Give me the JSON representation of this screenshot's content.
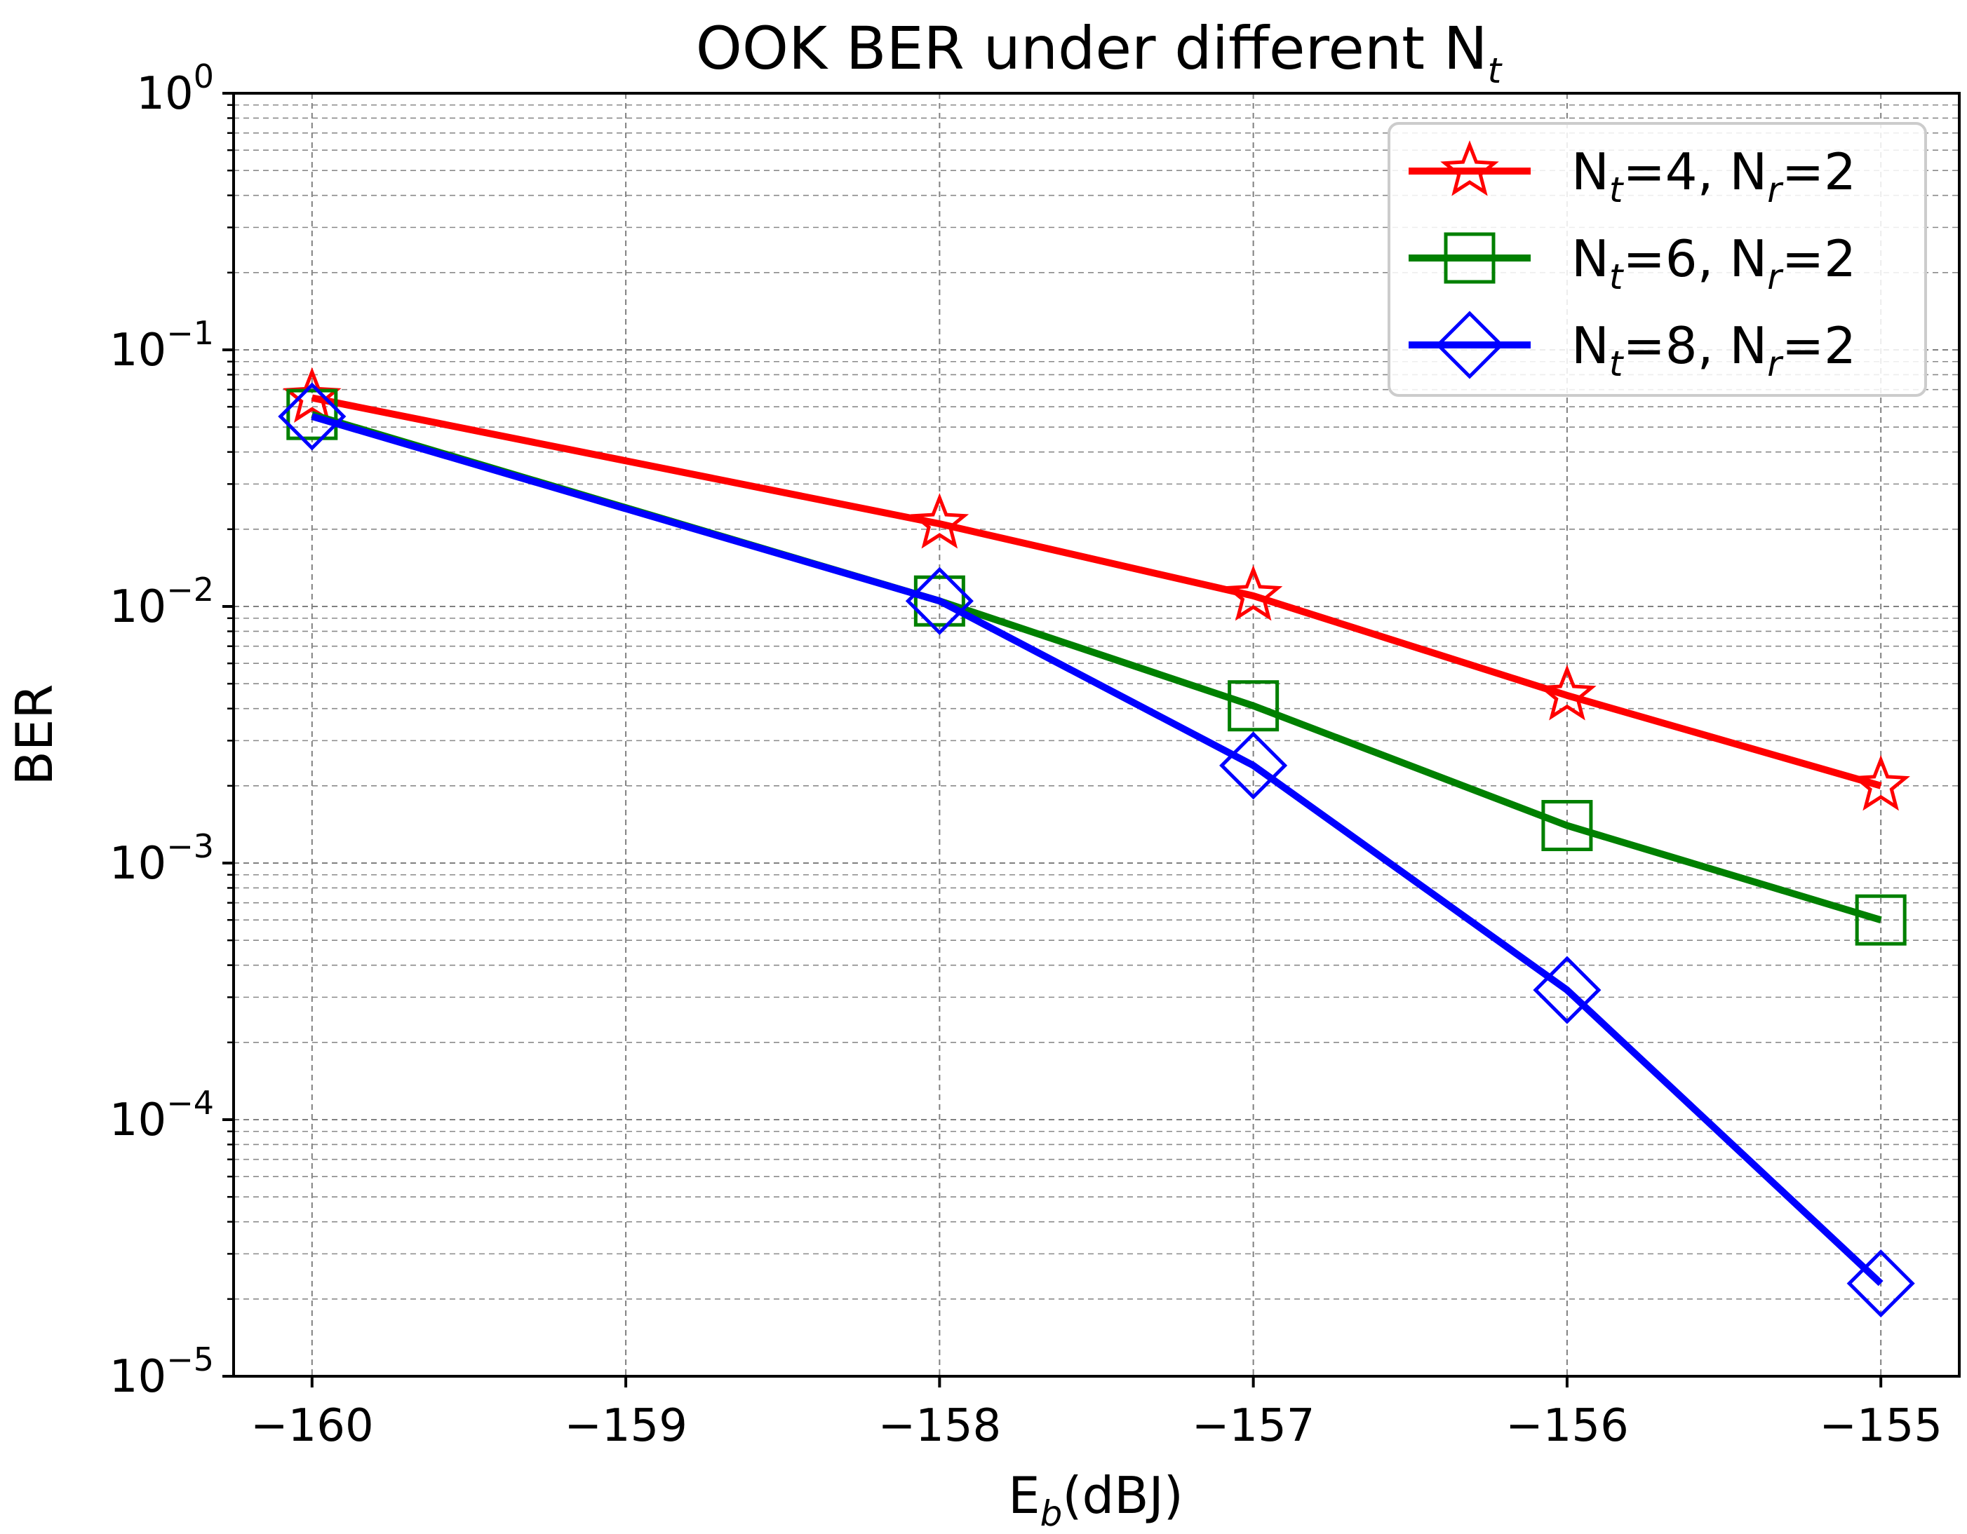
{
  "chart_data": {
    "type": "line",
    "title": "OOK BER under different N",
    "title_subscript": "t",
    "xlabel": "E",
    "xlabel_subscript": "b",
    "xlabel_suffix": "(dBJ)",
    "ylabel": "BER",
    "yscale": "log",
    "xlim": [
      -160.25,
      -154.75
    ],
    "ylim": [
      1e-05,
      1
    ],
    "grid": true,
    "legend_position": "upper-right",
    "x_ticks": [
      {
        "value": -160,
        "label": "−160"
      },
      {
        "value": -159,
        "label": "−159"
      },
      {
        "value": -158,
        "label": "−158"
      },
      {
        "value": -157,
        "label": "−157"
      },
      {
        "value": -156,
        "label": "−156"
      },
      {
        "value": -155,
        "label": "−155"
      }
    ],
    "y_ticks": [
      {
        "value": 1,
        "base": "10",
        "exp": "0"
      },
      {
        "value": 0.1,
        "base": "10",
        "exp": "−1"
      },
      {
        "value": 0.01,
        "base": "10",
        "exp": "−2"
      },
      {
        "value": 0.001,
        "base": "10",
        "exp": "−3"
      },
      {
        "value": 0.0001,
        "base": "10",
        "exp": "−4"
      },
      {
        "value": 1e-05,
        "base": "10",
        "exp": "−5"
      }
    ],
    "series": [
      {
        "name": "N_t=4, N_r=2",
        "legend_parts": [
          "N",
          "t",
          "=4, N",
          "r",
          "=2"
        ],
        "color": "#ff0000",
        "marker": "star",
        "x": [
          -160,
          -158,
          -157,
          -156,
          -155
        ],
        "y": [
          0.065,
          0.021,
          0.011,
          0.0045,
          0.002
        ]
      },
      {
        "name": "N_t=6, N_r=2",
        "legend_parts": [
          "N",
          "t",
          "=6, N",
          "r",
          "=2"
        ],
        "color": "#008000",
        "marker": "square",
        "x": [
          -160,
          -158,
          -157,
          -156,
          -155
        ],
        "y": [
          0.056,
          0.0105,
          0.0041,
          0.0014,
          0.0006
        ]
      },
      {
        "name": "N_t=8, N_r=2",
        "legend_parts": [
          "N",
          "t",
          "=8, N",
          "r",
          "=2"
        ],
        "color": "#0000ff",
        "marker": "diamond",
        "x": [
          -160,
          -158,
          -157,
          -156,
          -155
        ],
        "y": [
          0.055,
          0.0105,
          0.0024,
          0.00032,
          2.3e-05
        ]
      }
    ]
  }
}
